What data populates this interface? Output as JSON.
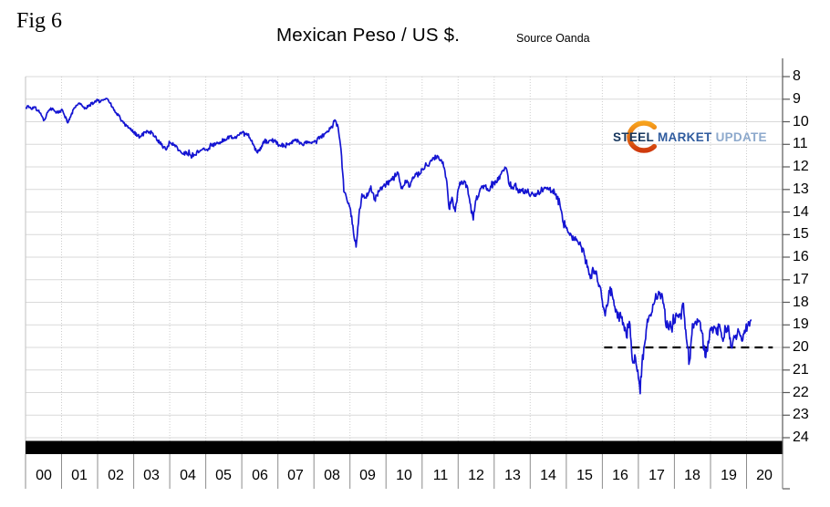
{
  "header": {
    "fig_label": "Fig 6",
    "title": "Mexican Peso / US $.",
    "source": "Source Oanda"
  },
  "logo": {
    "word1": "STEEL",
    "word2": "MARKET",
    "word3": "UPDATE",
    "navy": "#17375e",
    "blue": "#2f5b9e",
    "light_blue": "#8da9cc",
    "orange_top": "#f7a21c",
    "orange_bottom": "#cf3a0d"
  },
  "chart_data": {
    "type": "line",
    "title": "Mexican Peso / US $.",
    "source": "Source Oanda",
    "x_axis": {
      "range": [
        2000,
        2021
      ],
      "tick_labels": [
        "00",
        "01",
        "02",
        "03",
        "04",
        "05",
        "06",
        "07",
        "08",
        "09",
        "10",
        "11",
        "12",
        "13",
        "14",
        "15",
        "16",
        "17",
        "18",
        "19",
        "20"
      ]
    },
    "y_axis": {
      "range": [
        8,
        25
      ],
      "inverted": true,
      "ticks": [
        8,
        9,
        10,
        11,
        12,
        13,
        14,
        15,
        16,
        17,
        18,
        19,
        20,
        21,
        22,
        23,
        24
      ]
    },
    "grid": {
      "horizontal": true,
      "vertical_dotted": true
    },
    "annotations": {
      "dashed_line": {
        "value": 20,
        "x_start": 2016.05,
        "x_end": 2020.73,
        "color": "#000000"
      },
      "bottom_black_bar": {
        "color": "#000000"
      }
    },
    "series": [
      {
        "name": "Mexican Peso per US Dollar",
        "color": "#1414d2",
        "points": [
          [
            2000.0,
            9.4
          ],
          [
            2000.08,
            9.3
          ],
          [
            2000.17,
            9.45
          ],
          [
            2000.25,
            9.35
          ],
          [
            2000.33,
            9.5
          ],
          [
            2000.42,
            9.62
          ],
          [
            2000.5,
            9.95
          ],
          [
            2000.58,
            9.7
          ],
          [
            2000.67,
            9.45
          ],
          [
            2000.75,
            9.4
          ],
          [
            2000.83,
            9.55
          ],
          [
            2000.92,
            9.6
          ],
          [
            2001.0,
            9.45
          ],
          [
            2001.08,
            9.72
          ],
          [
            2001.17,
            10.05
          ],
          [
            2001.25,
            9.78
          ],
          [
            2001.33,
            9.45
          ],
          [
            2001.42,
            9.28
          ],
          [
            2001.5,
            9.18
          ],
          [
            2001.58,
            9.32
          ],
          [
            2001.67,
            9.4
          ],
          [
            2001.75,
            9.28
          ],
          [
            2001.83,
            9.2
          ],
          [
            2001.92,
            9.1
          ],
          [
            2002.0,
            9.05
          ],
          [
            2002.08,
            9.12
          ],
          [
            2002.17,
            9.02
          ],
          [
            2002.25,
            8.97
          ],
          [
            2002.33,
            9.15
          ],
          [
            2002.42,
            9.35
          ],
          [
            2002.5,
            9.6
          ],
          [
            2002.58,
            9.72
          ],
          [
            2002.67,
            9.95
          ],
          [
            2002.75,
            10.1
          ],
          [
            2002.83,
            10.18
          ],
          [
            2002.92,
            10.3
          ],
          [
            2003.0,
            10.45
          ],
          [
            2003.17,
            10.68
          ],
          [
            2003.33,
            10.45
          ],
          [
            2003.5,
            10.48
          ],
          [
            2003.67,
            10.82
          ],
          [
            2003.83,
            11.12
          ],
          [
            2003.92,
            11.2
          ],
          [
            2004.0,
            10.92
          ],
          [
            2004.17,
            11.05
          ],
          [
            2004.33,
            11.38
          ],
          [
            2004.5,
            11.42
          ],
          [
            2004.67,
            11.45
          ],
          [
            2004.83,
            11.32
          ],
          [
            2004.92,
            11.2
          ],
          [
            2005.0,
            11.25
          ],
          [
            2005.17,
            11.08
          ],
          [
            2005.33,
            10.95
          ],
          [
            2005.5,
            10.78
          ],
          [
            2005.67,
            10.65
          ],
          [
            2005.83,
            10.72
          ],
          [
            2005.92,
            10.6
          ],
          [
            2006.0,
            10.48
          ],
          [
            2006.17,
            10.55
          ],
          [
            2006.33,
            11.05
          ],
          [
            2006.42,
            11.35
          ],
          [
            2006.5,
            11.28
          ],
          [
            2006.58,
            10.95
          ],
          [
            2006.75,
            10.85
          ],
          [
            2006.92,
            10.8
          ],
          [
            2007.0,
            11.0
          ],
          [
            2007.17,
            11.05
          ],
          [
            2007.33,
            10.95
          ],
          [
            2007.5,
            10.78
          ],
          [
            2007.67,
            11.0
          ],
          [
            2007.83,
            10.88
          ],
          [
            2007.92,
            10.92
          ],
          [
            2008.0,
            10.9
          ],
          [
            2008.17,
            10.7
          ],
          [
            2008.33,
            10.48
          ],
          [
            2008.5,
            10.25
          ],
          [
            2008.58,
            9.92
          ],
          [
            2008.67,
            10.25
          ],
          [
            2008.75,
            11.2
          ],
          [
            2008.83,
            13.1
          ],
          [
            2008.92,
            13.5
          ],
          [
            2009.0,
            13.8
          ],
          [
            2009.08,
            14.6
          ],
          [
            2009.17,
            15.55
          ],
          [
            2009.25,
            14.1
          ],
          [
            2009.33,
            13.2
          ],
          [
            2009.42,
            13.35
          ],
          [
            2009.5,
            13.25
          ],
          [
            2009.58,
            12.85
          ],
          [
            2009.67,
            13.45
          ],
          [
            2009.75,
            13.25
          ],
          [
            2009.83,
            13.05
          ],
          [
            2009.92,
            12.85
          ],
          [
            2010.0,
            12.77
          ],
          [
            2010.17,
            12.57
          ],
          [
            2010.33,
            12.25
          ],
          [
            2010.42,
            12.95
          ],
          [
            2010.5,
            12.82
          ],
          [
            2010.58,
            12.6
          ],
          [
            2010.67,
            12.85
          ],
          [
            2010.75,
            12.45
          ],
          [
            2010.83,
            12.33
          ],
          [
            2010.92,
            12.36
          ],
          [
            2011.0,
            12.1
          ],
          [
            2011.17,
            11.95
          ],
          [
            2011.33,
            11.62
          ],
          [
            2011.42,
            11.5
          ],
          [
            2011.5,
            11.72
          ],
          [
            2011.58,
            11.78
          ],
          [
            2011.67,
            12.5
          ],
          [
            2011.75,
            13.85
          ],
          [
            2011.83,
            13.35
          ],
          [
            2011.92,
            13.98
          ],
          [
            2012.0,
            13.0
          ],
          [
            2012.08,
            12.75
          ],
          [
            2012.17,
            12.62
          ],
          [
            2012.25,
            12.85
          ],
          [
            2012.33,
            13.6
          ],
          [
            2012.42,
            14.35
          ],
          [
            2012.5,
            13.45
          ],
          [
            2012.58,
            13.18
          ],
          [
            2012.67,
            12.9
          ],
          [
            2012.75,
            12.85
          ],
          [
            2012.83,
            13.05
          ],
          [
            2012.92,
            12.88
          ],
          [
            2013.0,
            12.7
          ],
          [
            2013.08,
            12.68
          ],
          [
            2013.17,
            12.35
          ],
          [
            2013.25,
            12.15
          ],
          [
            2013.33,
            12.05
          ],
          [
            2013.42,
            12.8
          ],
          [
            2013.5,
            12.95
          ],
          [
            2013.58,
            12.75
          ],
          [
            2013.67,
            13.15
          ],
          [
            2013.75,
            13.0
          ],
          [
            2013.83,
            13.12
          ],
          [
            2013.92,
            13.05
          ],
          [
            2014.0,
            13.3
          ],
          [
            2014.17,
            13.22
          ],
          [
            2014.33,
            13.0
          ],
          [
            2014.5,
            12.98
          ],
          [
            2014.67,
            13.12
          ],
          [
            2014.75,
            13.42
          ],
          [
            2014.83,
            13.72
          ],
          [
            2014.92,
            14.5
          ],
          [
            2015.0,
            14.72
          ],
          [
            2015.08,
            14.95
          ],
          [
            2015.17,
            15.25
          ],
          [
            2015.25,
            15.1
          ],
          [
            2015.33,
            15.35
          ],
          [
            2015.42,
            15.55
          ],
          [
            2015.5,
            15.9
          ],
          [
            2015.58,
            16.45
          ],
          [
            2015.67,
            16.95
          ],
          [
            2015.75,
            16.55
          ],
          [
            2015.83,
            16.62
          ],
          [
            2015.92,
            17.25
          ],
          [
            2016.0,
            17.95
          ],
          [
            2016.08,
            18.6
          ],
          [
            2016.17,
            17.85
          ],
          [
            2016.25,
            17.4
          ],
          [
            2016.33,
            18.15
          ],
          [
            2016.42,
            18.7
          ],
          [
            2016.5,
            18.45
          ],
          [
            2016.58,
            18.9
          ],
          [
            2016.67,
            19.55
          ],
          [
            2016.75,
            18.85
          ],
          [
            2016.83,
            20.55
          ],
          [
            2016.92,
            20.45
          ],
          [
            2017.0,
            21.35
          ],
          [
            2017.05,
            22.05
          ],
          [
            2017.1,
            20.7
          ],
          [
            2017.17,
            19.9
          ],
          [
            2017.25,
            18.75
          ],
          [
            2017.33,
            18.55
          ],
          [
            2017.42,
            18.1
          ],
          [
            2017.5,
            17.85
          ],
          [
            2017.58,
            17.65
          ],
          [
            2017.67,
            17.78
          ],
          [
            2017.75,
            18.85
          ],
          [
            2017.83,
            19.15
          ],
          [
            2017.92,
            19.2
          ],
          [
            2018.0,
            18.75
          ],
          [
            2018.08,
            18.62
          ],
          [
            2018.17,
            18.6
          ],
          [
            2018.25,
            18.05
          ],
          [
            2018.33,
            19.6
          ],
          [
            2018.42,
            20.6
          ],
          [
            2018.5,
            18.95
          ],
          [
            2018.58,
            18.85
          ],
          [
            2018.67,
            18.8
          ],
          [
            2018.75,
            19.25
          ],
          [
            2018.87,
            20.45
          ],
          [
            2018.95,
            19.8
          ],
          [
            2019.0,
            19.15
          ],
          [
            2019.08,
            19.22
          ],
          [
            2019.17,
            19.4
          ],
          [
            2019.25,
            18.98
          ],
          [
            2019.33,
            19.6
          ],
          [
            2019.42,
            19.15
          ],
          [
            2019.5,
            19.05
          ],
          [
            2019.58,
            20.0
          ],
          [
            2019.67,
            19.55
          ],
          [
            2019.75,
            19.35
          ],
          [
            2019.83,
            19.5
          ],
          [
            2019.88,
            19.72
          ],
          [
            2019.96,
            19.35
          ],
          [
            2020.04,
            19.0
          ],
          [
            2020.1,
            18.85
          ],
          [
            2020.14,
            18.8
          ]
        ]
      }
    ]
  }
}
